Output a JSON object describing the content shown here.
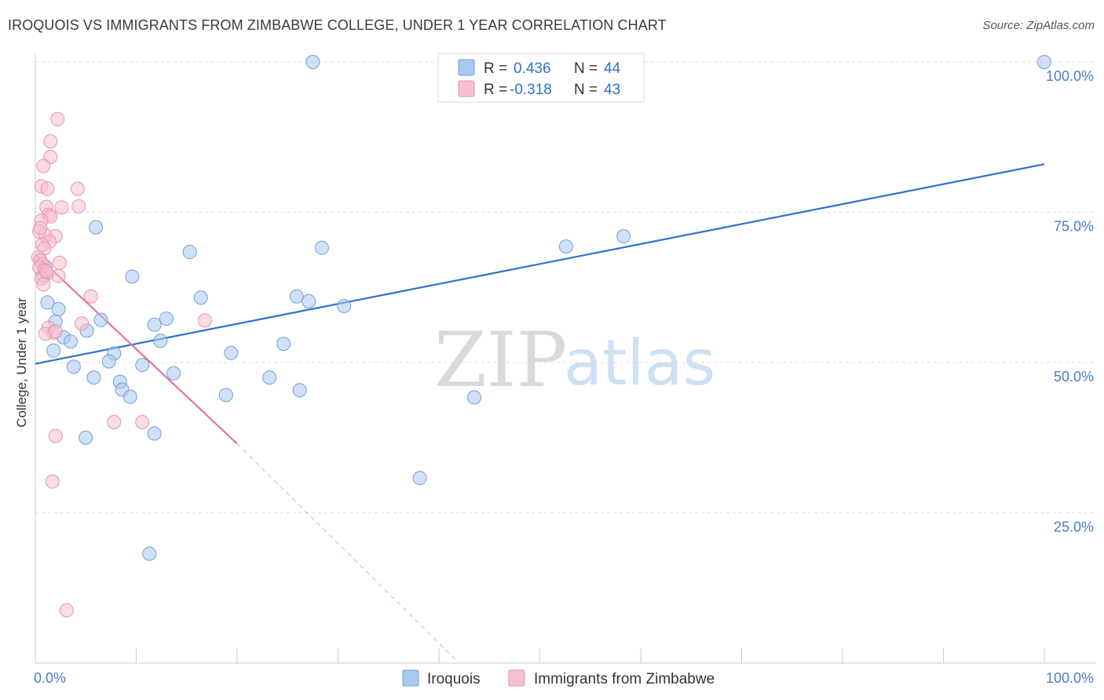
{
  "title": "IROQUOIS VS IMMIGRANTS FROM ZIMBABWE COLLEGE, UNDER 1 YEAR CORRELATION CHART",
  "source": "Source: ZipAtlas.com",
  "watermark": {
    "zip": "ZIP",
    "atlas": "atlas"
  },
  "legend": {
    "r_label": "R =",
    "n_label": "N =",
    "rows": [
      {
        "r": "0.436",
        "n": "44",
        "color": "#aac8f0",
        "stroke": "#6f9fdc"
      },
      {
        "r": "-0.318",
        "n": "43",
        "color": "#f6c0d0",
        "stroke": "#e892ad"
      }
    ]
  },
  "chart_data": {
    "type": "scatter",
    "title": "IROQUOIS VS IMMIGRANTS FROM ZIMBABWE COLLEGE, UNDER 1 YEAR CORRELATION CHART",
    "ylabel": "College, Under 1 year",
    "xlabel": "",
    "xlim": [
      0,
      100
    ],
    "ylim": [
      0,
      100
    ],
    "x_tick_labels": [
      "0.0%",
      "100.0%"
    ],
    "y_ticks": [
      25,
      50,
      75,
      100
    ],
    "y_tick_labels": [
      "25.0%",
      "50.0%",
      "75.0%",
      "100.0%"
    ],
    "grid": true,
    "series": [
      {
        "name": "Iroquois",
        "color": "#aac8f0",
        "stroke": "#6f9fdc",
        "line_color": "#2f72cc",
        "trend": {
          "x0": 0,
          "y0": 49.8,
          "x1": 100,
          "y1": 83.0
        },
        "points": [
          [
            27.5,
            100
          ],
          [
            100,
            100
          ],
          [
            6.0,
            72.5
          ],
          [
            15.3,
            68.4
          ],
          [
            28.4,
            69.1
          ],
          [
            52.6,
            69.3
          ],
          [
            58.3,
            71.0
          ],
          [
            9.6,
            64.3
          ],
          [
            16.4,
            60.8
          ],
          [
            25.9,
            61.0
          ],
          [
            27.1,
            60.2
          ],
          [
            30.6,
            59.4
          ],
          [
            1.2,
            60.0
          ],
          [
            2.3,
            58.9
          ],
          [
            6.5,
            57.1
          ],
          [
            11.8,
            56.3
          ],
          [
            13.0,
            57.3
          ],
          [
            2.0,
            56.8
          ],
          [
            5.1,
            55.3
          ],
          [
            2.8,
            54.2
          ],
          [
            3.5,
            53.5
          ],
          [
            12.4,
            53.6
          ],
          [
            24.6,
            53.1
          ],
          [
            1.8,
            52.0
          ],
          [
            7.8,
            51.5
          ],
          [
            19.4,
            51.6
          ],
          [
            7.3,
            50.2
          ],
          [
            10.6,
            49.6
          ],
          [
            3.8,
            49.3
          ],
          [
            13.7,
            48.2
          ],
          [
            5.8,
            47.5
          ],
          [
            23.2,
            47.5
          ],
          [
            8.4,
            46.8
          ],
          [
            8.6,
            45.5
          ],
          [
            26.2,
            45.4
          ],
          [
            18.9,
            44.6
          ],
          [
            9.4,
            44.3
          ],
          [
            43.5,
            44.2
          ],
          [
            11.8,
            38.2
          ],
          [
            5.0,
            37.5
          ],
          [
            38.1,
            30.8
          ],
          [
            11.3,
            18.2
          ],
          [
            1.0,
            66.0
          ],
          [
            0.8,
            64.5
          ]
        ]
      },
      {
        "name": "Immigrants from Zimbabwe",
        "color": "#f6c0d0",
        "stroke": "#e892ad",
        "line_color": "#e8729a",
        "trend": {
          "x0": 0,
          "y0": 68.0,
          "x1": 20.0,
          "y1": 36.5
        },
        "trend_dashed": {
          "x0": 20.0,
          "y0": 36.5,
          "x1": 42.0,
          "y1": 0.0
        },
        "points": [
          [
            2.2,
            90.5
          ],
          [
            1.5,
            86.8
          ],
          [
            1.5,
            84.2
          ],
          [
            0.8,
            82.7
          ],
          [
            0.6,
            79.3
          ],
          [
            1.2,
            78.9
          ],
          [
            4.2,
            78.9
          ],
          [
            1.1,
            75.9
          ],
          [
            2.6,
            75.8
          ],
          [
            4.3,
            76.0
          ],
          [
            1.3,
            74.6
          ],
          [
            1.5,
            74.3
          ],
          [
            0.6,
            73.6
          ],
          [
            0.4,
            71.8
          ],
          [
            1.0,
            71.2
          ],
          [
            2.0,
            71.0
          ],
          [
            1.4,
            70.1
          ],
          [
            0.7,
            69.6
          ],
          [
            0.9,
            69.0
          ],
          [
            0.3,
            67.5
          ],
          [
            0.5,
            67.0
          ],
          [
            0.7,
            66.4
          ],
          [
            2.4,
            66.6
          ],
          [
            0.4,
            65.8
          ],
          [
            0.9,
            65.4
          ],
          [
            1.2,
            64.8
          ],
          [
            0.6,
            64.0
          ],
          [
            2.3,
            64.4
          ],
          [
            0.8,
            63.0
          ],
          [
            5.5,
            61.0
          ],
          [
            16.8,
            57.0
          ],
          [
            4.6,
            56.5
          ],
          [
            1.3,
            55.8
          ],
          [
            1.8,
            55.0
          ],
          [
            1.0,
            54.8
          ],
          [
            2.0,
            55.2
          ],
          [
            7.8,
            40.1
          ],
          [
            10.6,
            40.1
          ],
          [
            2.0,
            37.8
          ],
          [
            1.7,
            30.2
          ],
          [
            3.1,
            8.8
          ],
          [
            0.5,
            72.4
          ],
          [
            1.1,
            65.2
          ]
        ]
      }
    ]
  },
  "bottom_legend": [
    {
      "label": "Iroquois",
      "color": "#aac8f0",
      "stroke": "#6f9fdc"
    },
    {
      "label": "Immigrants from Zimbabwe",
      "color": "#f6c0d0",
      "stroke": "#e892ad"
    }
  ]
}
